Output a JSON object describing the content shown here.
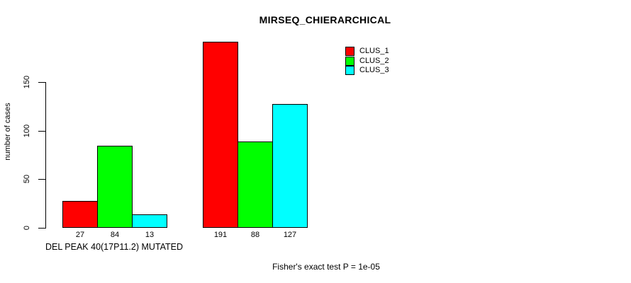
{
  "chart_data": {
    "type": "bar",
    "title": "MIRSEQ_CHIERARCHICAL",
    "ylabel": "number of cases",
    "xlabel": "DEL PEAK 40(17P11.2) MUTATED",
    "annotation": "Fisher's exact test P = 1e-05",
    "yticks": [
      0,
      50,
      100,
      150
    ],
    "ylim": [
      0,
      191
    ],
    "grid": false,
    "legend_position": "top-right",
    "series": [
      {
        "name": "CLUS_1",
        "color": "#ff0000",
        "values": [
          27,
          191
        ]
      },
      {
        "name": "CLUS_2",
        "color": "#00ff00",
        "values": [
          84,
          88
        ]
      },
      {
        "name": "CLUS_3",
        "color": "#00ffff",
        "values": [
          13,
          127
        ]
      }
    ],
    "bar_value_labels": [
      [
        "27",
        "84",
        "13"
      ],
      [
        "191",
        "88",
        "127"
      ]
    ]
  }
}
